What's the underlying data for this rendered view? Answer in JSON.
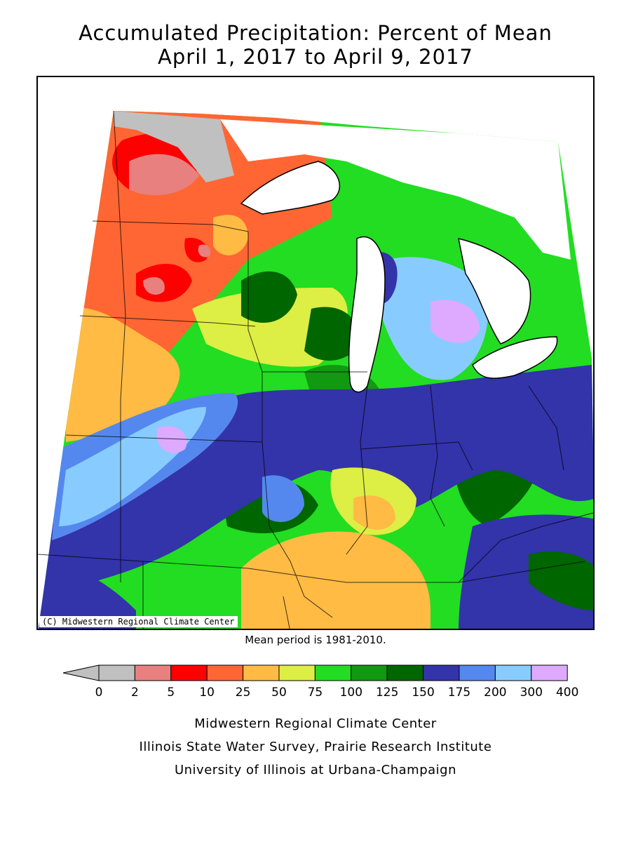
{
  "title": {
    "line1": "Accumulated Precipitation: Percent of Mean",
    "line2": "April 1, 2017 to April 9, 2017"
  },
  "map": {
    "credit": "(C) Midwestern Regional Climate Center",
    "mean_period": "Mean period is 1981-2010."
  },
  "legend": {
    "ticks": [
      "0",
      "2",
      "5",
      "10",
      "25",
      "50",
      "75",
      "100",
      "125",
      "150",
      "175",
      "200",
      "300",
      "400"
    ],
    "colors": [
      "#c0c0c0",
      "#e88080",
      "#ff0000",
      "#ff6633",
      "#ffbb44",
      "#ddee44",
      "#22dd22",
      "#119911",
      "#006600",
      "#3333aa",
      "#5588ee",
      "#88ccff",
      "#ddaaff"
    ]
  },
  "footer": {
    "line1": "Midwestern Regional Climate Center",
    "line2": "Illinois State Water Survey, Prairie Research Institute",
    "line3": "University of Illinois at Urbana-Champaign"
  }
}
